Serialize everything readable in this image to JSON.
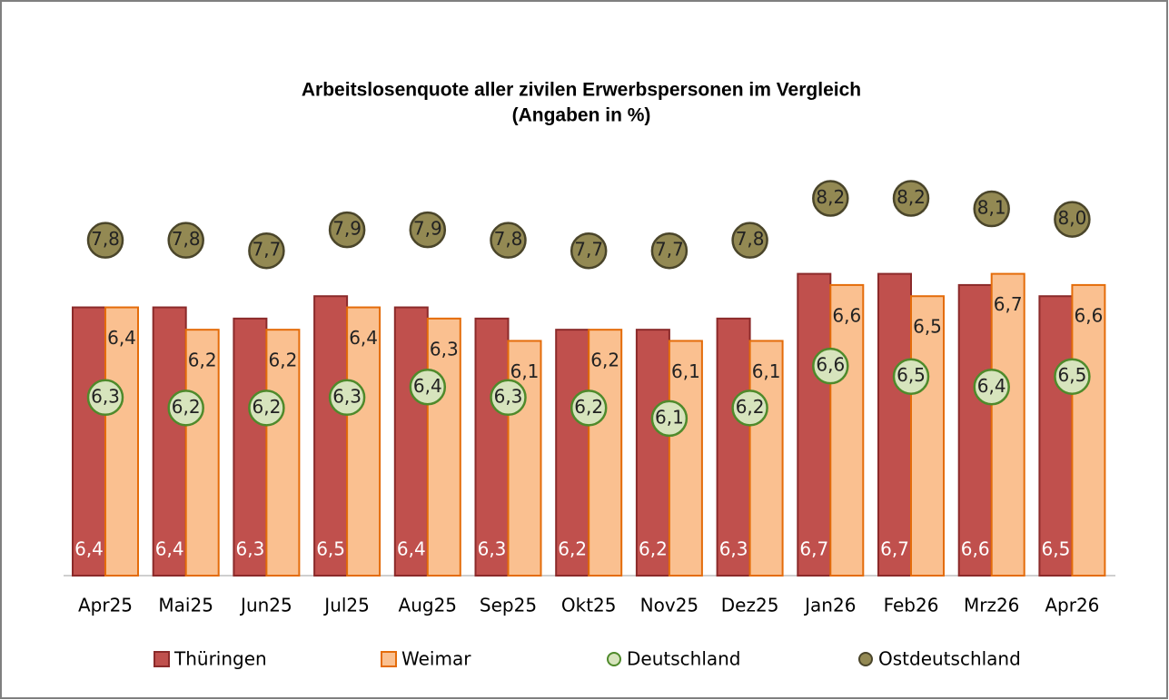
{
  "chart_data": {
    "type": "bar",
    "title": "Arbeitslosenquote aller zivilen Erwerbspersonen im Vergleich",
    "subtitle": "(Angaben in %)",
    "categories": [
      "Apr25",
      "Mai25",
      "Jun25",
      "Jul25",
      "Aug25",
      "Sep25",
      "Okt25",
      "Nov25",
      "Dez25",
      "Jan26",
      "Feb26",
      "Mrz26",
      "Apr26"
    ],
    "ylim": [
      4,
      8.5
    ],
    "y2lim": [
      4.6,
      9.4
    ],
    "series": [
      {
        "name": "Thüringen",
        "color": "#c0504d",
        "values": [
          6.4,
          6.4,
          6.3,
          6.5,
          6.4,
          6.3,
          6.2,
          6.2,
          6.3,
          6.7,
          6.7,
          6.6,
          6.5
        ],
        "value_labels": [
          "6,4",
          "6,4",
          "6,3",
          "6,5",
          "6,4",
          "6,3",
          "6,2",
          "6,2",
          "6,3",
          "6,7",
          "6,7",
          "6,6",
          "6,5"
        ]
      },
      {
        "name": "Weimar",
        "color": "#fac090",
        "values": [
          6.4,
          6.2,
          6.2,
          6.4,
          6.3,
          6.1,
          6.2,
          6.1,
          6.1,
          6.6,
          6.5,
          6.7,
          6.6
        ],
        "value_labels": [
          "6,4",
          "6,2",
          "6,2",
          "6,4",
          "6,3",
          "6,1",
          "6,2",
          "6,1",
          "6,1",
          "6,6",
          "6,5",
          "6,7",
          "6,6"
        ]
      },
      {
        "name": "Deutschland",
        "color": "#d7e4bd",
        "axis": "y2",
        "values": [
          6.3,
          6.2,
          6.2,
          6.3,
          6.4,
          6.3,
          6.2,
          6.1,
          6.2,
          6.6,
          6.5,
          6.4,
          6.5
        ],
        "value_labels": [
          "6,3",
          "6,2",
          "6,2",
          "6,3",
          "6,4",
          "6,3",
          "6,2",
          "6,1",
          "6,2",
          "6,6",
          "6,5",
          "6,4",
          "6,5"
        ]
      },
      {
        "name": "Ostdeutschland",
        "color": "#938953",
        "axis": "y2",
        "values": [
          7.8,
          7.8,
          7.7,
          7.9,
          7.9,
          7.8,
          7.7,
          7.7,
          7.8,
          8.2,
          8.2,
          8.1,
          8.0
        ],
        "value_labels": [
          "7,8",
          "7,8",
          "7,7",
          "7,9",
          "7,9",
          "7,8",
          "7,7",
          "7,7",
          "7,8",
          "8,2",
          "8,2",
          "8,1",
          "8,0"
        ]
      }
    ]
  }
}
